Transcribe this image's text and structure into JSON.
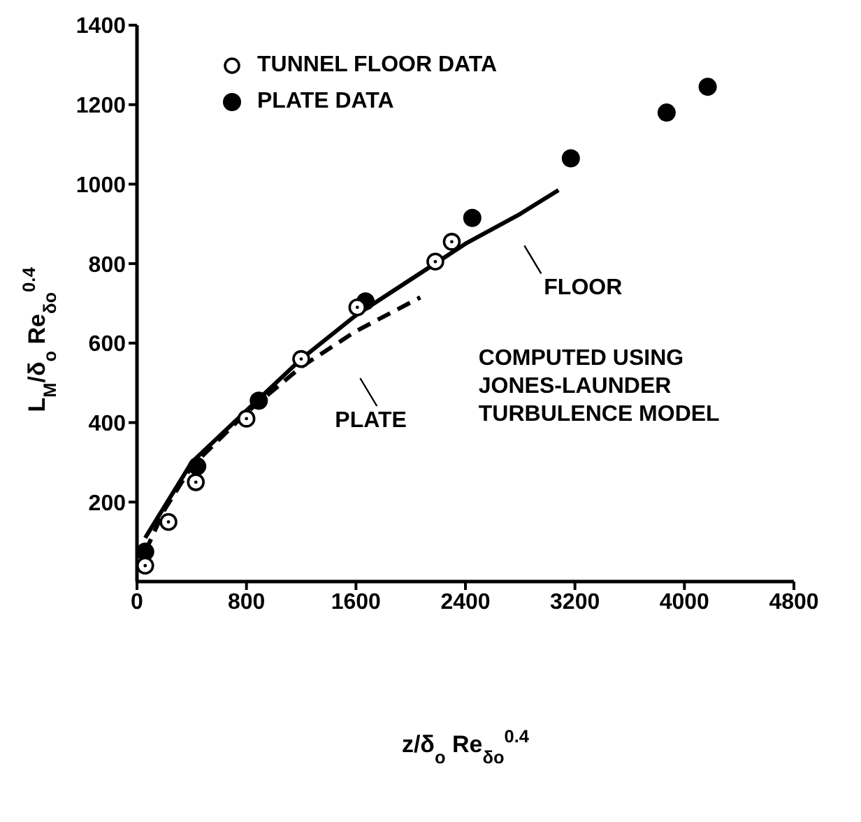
{
  "chart_data": {
    "type": "scatter",
    "xlabel": "z/δ$_{o}$ Re$_{δo}$$^{0.4}$",
    "ylabel": "L$_{M}$/δ$_{o}$ Re$_{δo}$$^{0.4}$",
    "xlim": [
      0,
      4800
    ],
    "xticks": [
      0,
      800,
      1600,
      2400,
      3200,
      4000,
      4800
    ],
    "ylim": [
      0,
      1400
    ],
    "yticks": [
      200,
      400,
      600,
      800,
      1000,
      1200,
      1400
    ],
    "legend": "top left",
    "annotations": [
      "COMPUTED USING\nJONES-LAUNDER\nTURBULENCE MODEL"
    ],
    "series": [
      {
        "name": "TUNNEL FLOOR DATA",
        "marker": "circle",
        "color": "#000000",
        "x": [
          60,
          230,
          430,
          800,
          1200,
          1610,
          2180,
          2300
        ],
        "values": [
          40,
          150,
          250,
          410,
          560,
          690,
          805,
          855
        ]
      },
      {
        "name": "PLATE DATA",
        "marker": "circle",
        "color": "#000000",
        "x": [
          60,
          440,
          890,
          1670,
          2450,
          3170,
          3870,
          4170
        ],
        "values": [
          75,
          290,
          455,
          705,
          915,
          1065,
          1180,
          1245
        ]
      },
      {
        "name": "FLOOR",
        "type": "line",
        "marker": "none",
        "color": "#000000",
        "line_style": "solid",
        "x": [
          60,
          400,
          800,
          1200,
          1600,
          2000,
          2400,
          2800,
          3080
        ],
        "values": [
          110,
          300,
          430,
          560,
          670,
          760,
          850,
          925,
          985
        ]
      },
      {
        "name": "PLATE",
        "type": "line",
        "marker": "none",
        "color": "#000000",
        "line_style": "dashed",
        "x": [
          60,
          200,
          400,
          800,
          1200,
          1600,
          2070
        ],
        "values": [
          75,
          180,
          290,
          425,
          540,
          630,
          715
        ]
      }
    ]
  }
}
